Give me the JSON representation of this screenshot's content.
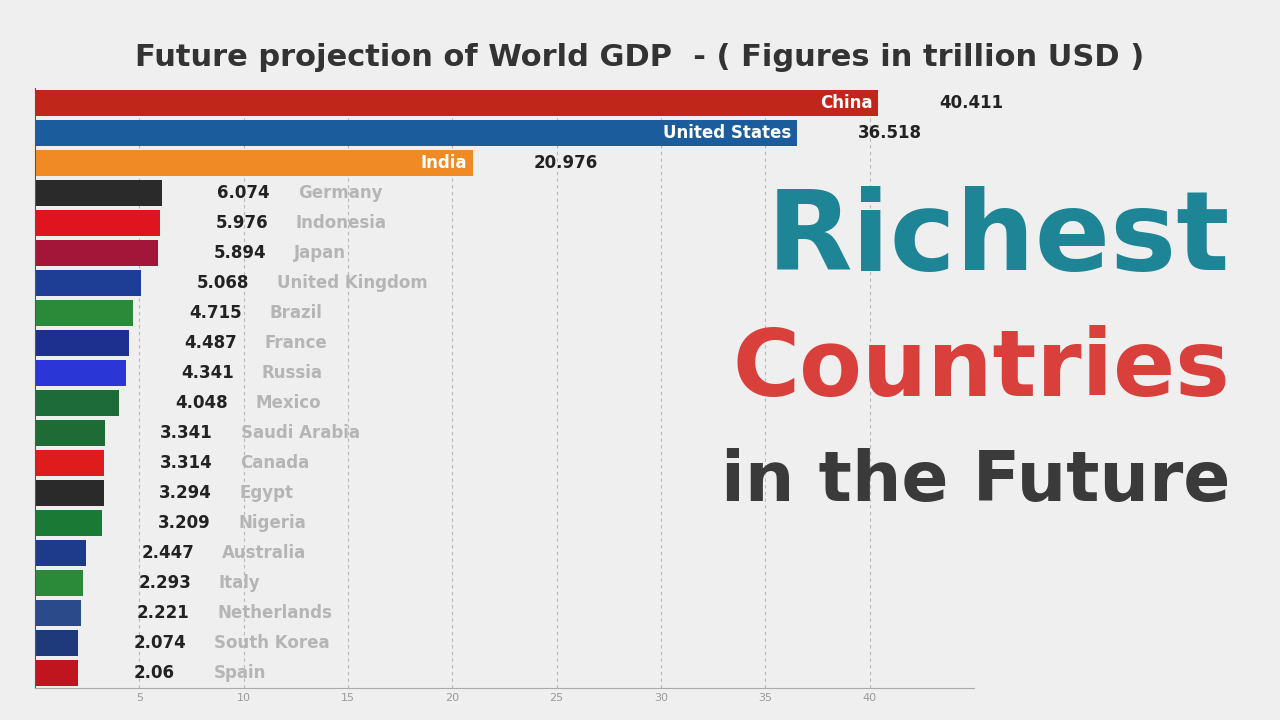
{
  "chart_data": {
    "type": "bar",
    "orientation": "horizontal",
    "title": "Future projection of World GDP  - ( Figures in trillion USD )",
    "annotations": [
      "Richest",
      "Countries",
      "in the Future"
    ],
    "categories": [
      "China",
      "United States",
      "India",
      "Germany",
      "Indonesia",
      "Japan",
      "United Kingdom",
      "Brazil",
      "France",
      "Russia",
      "Mexico",
      "Saudi Arabia",
      "Canada",
      "Egypt",
      "Nigeria",
      "Australia",
      "Italy",
      "Netherlands",
      "South Korea",
      "Spain"
    ],
    "values": [
      40.411,
      36.518,
      20.976,
      6.074,
      5.976,
      5.894,
      5.068,
      4.715,
      4.487,
      4.341,
      4.048,
      3.341,
      3.314,
      3.294,
      3.209,
      2.447,
      2.293,
      2.221,
      2.074,
      2.06
    ],
    "colors": [
      "#c1261a",
      "#1a5c9c",
      "#f08a24",
      "#2a2a2a",
      "#e0141e",
      "#a3163a",
      "#1d3e94",
      "#2a8a3a",
      "#1d2f8f",
      "#2a36d6",
      "#1e6b3a",
      "#1f6b35",
      "#e01b1b",
      "#2a2a2a",
      "#1a7a35",
      "#1e3a8a",
      "#2a8a3a",
      "#2a4a8a",
      "#1e3a7a",
      "#c0151f"
    ],
    "xlim": [
      0,
      45
    ],
    "xticks": [
      5,
      10,
      15,
      20,
      25,
      30,
      35,
      40
    ],
    "grid": true,
    "data_labels": true,
    "tick_labels": "x"
  }
}
